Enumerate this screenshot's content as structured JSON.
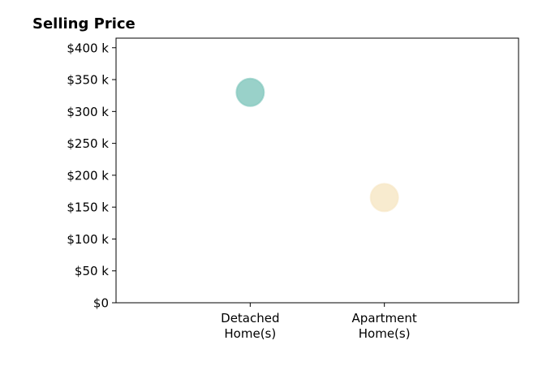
{
  "chart_data": {
    "type": "scatter",
    "title": "Selling Price",
    "xlabel": "",
    "ylabel": "",
    "categories": [
      [
        "Detached",
        "Home(s)"
      ],
      [
        "Apartment",
        "Home(s)"
      ]
    ],
    "y_tick_values": [
      0,
      50000,
      100000,
      150000,
      200000,
      250000,
      300000,
      350000,
      400000
    ],
    "y_tick_labels": [
      "$0",
      "$50 k",
      "$100 k",
      "$150 k",
      "$200 k",
      "$250 k",
      "$300 k",
      "$350 k",
      "$400 k"
    ],
    "ylim": [
      0,
      415000
    ],
    "xlim": [
      -1,
      2
    ],
    "grid": false,
    "points": [
      {
        "category": "Detached Home(s)",
        "value": 330000,
        "color": "#7fc6bc",
        "opacity": 0.8
      },
      {
        "category": "Apartment Home(s)",
        "value": 165000,
        "color": "#f6e6c3",
        "opacity": 0.8
      }
    ],
    "point_edge_color": "#cfe9e4",
    "axis_color": "#000000"
  }
}
